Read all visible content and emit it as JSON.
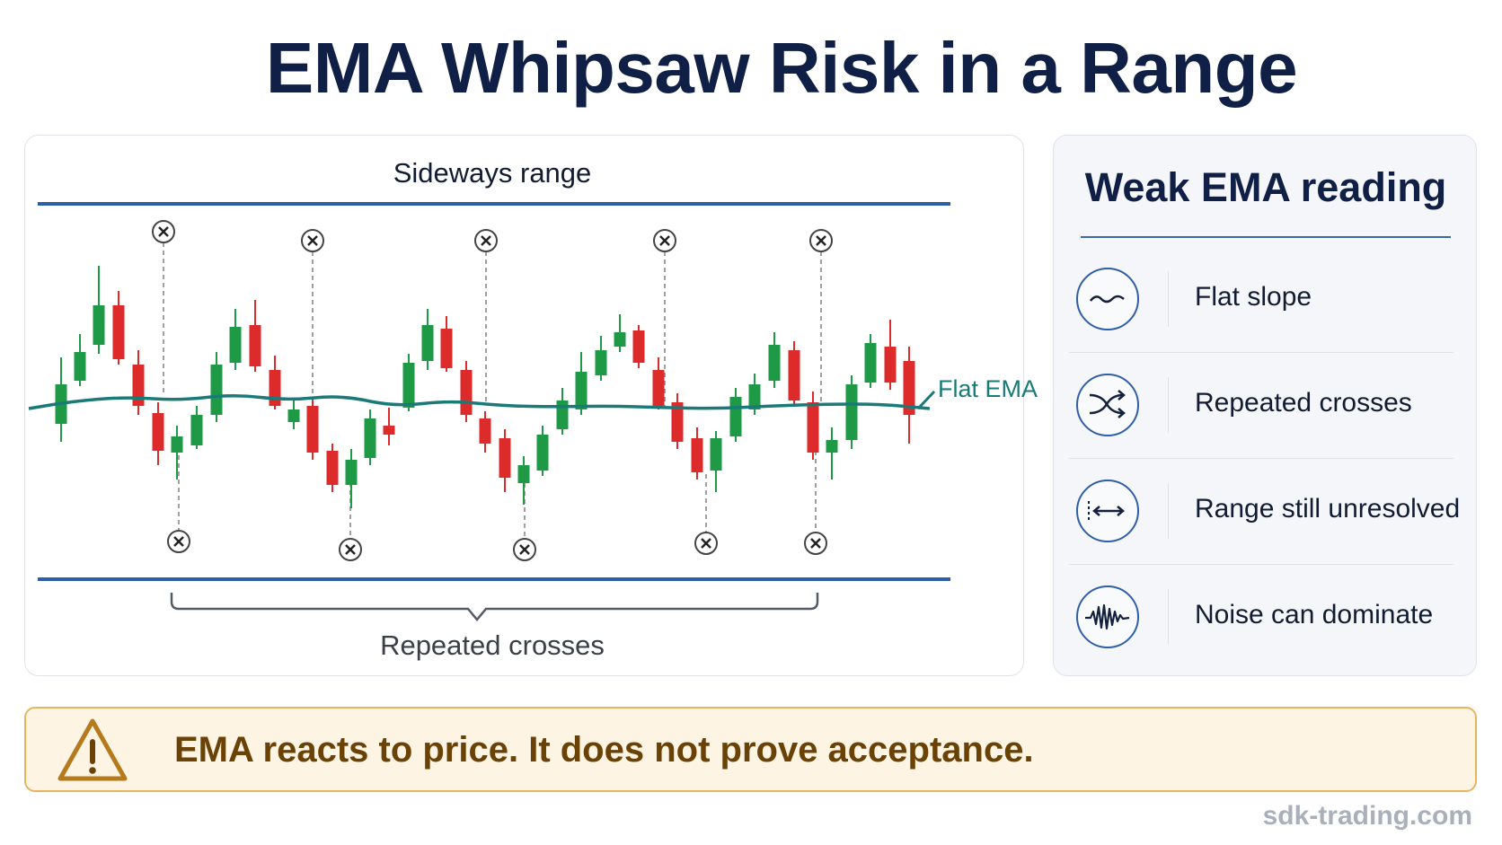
{
  "title": "EMA Whipsaw Risk in a Range",
  "chart": {
    "top_label": "Sideways range",
    "ema_label": "Flat EMA",
    "bottom_label": "Repeated crosses",
    "colors": {
      "bull": "#1e9a46",
      "bear": "#dd2a2a",
      "ema": "#197a78",
      "range_line": "#2f5ea8",
      "marker": "#444444"
    },
    "markers": {
      "top": [
        "cross-marker",
        "cross-marker",
        "cross-marker",
        "cross-marker",
        "cross-marker"
      ],
      "bottom": [
        "cross-marker",
        "cross-marker",
        "cross-marker",
        "cross-marker",
        "cross-marker"
      ]
    }
  },
  "side_panel": {
    "title": "Weak EMA reading",
    "items": [
      {
        "label": "Flat slope",
        "icon": "wave-icon"
      },
      {
        "label": "Repeated crosses",
        "icon": "shuffle-icon"
      },
      {
        "label": "Range still unresolved",
        "icon": "double-arrow-icon"
      },
      {
        "label": "Noise can dominate",
        "icon": "noise-wave-icon"
      }
    ]
  },
  "warning": {
    "icon": "warning-triangle-icon",
    "text": "EMA reacts to price. It does not prove acceptance.",
    "colors": {
      "border": "#e7b65c",
      "fill": "#fdf4e4",
      "text": "#6b4206"
    }
  },
  "footer": "sdk-trading.com"
}
